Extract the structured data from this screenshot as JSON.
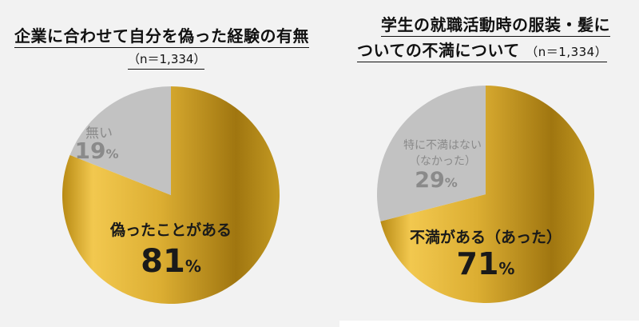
{
  "chart_data": [
    {
      "type": "pie",
      "title": "企業に合わせて自分を偽った経験の有無",
      "subtitle": "（n＝1,334）",
      "unit": "%",
      "slices": [
        {
          "label": "偽ったことがある",
          "value": 81,
          "color": "gold"
        },
        {
          "label": "無い",
          "value": 19,
          "color": "#c2c2c2"
        }
      ]
    },
    {
      "type": "pie",
      "title_line1": "学生の就職活動時の服装・髪に",
      "title_line2": "ついての不満について",
      "subtitle": "（n＝1,334）",
      "unit": "%",
      "slices": [
        {
          "label": "不満がある（あった）",
          "value": 71,
          "color": "gold"
        },
        {
          "label_line1": "特に不満はない",
          "label_line2": "（なかった）",
          "value": 29,
          "color": "#c2c2c2"
        }
      ]
    }
  ],
  "colors": {
    "gold_light": "#f2c84f",
    "gold_mid": "#d9aa2c",
    "gold_dark": "#a67c0e",
    "gray": "#c2c2c2",
    "gray_text": "#8a8a8a",
    "dark_text": "#1a1a1a"
  }
}
